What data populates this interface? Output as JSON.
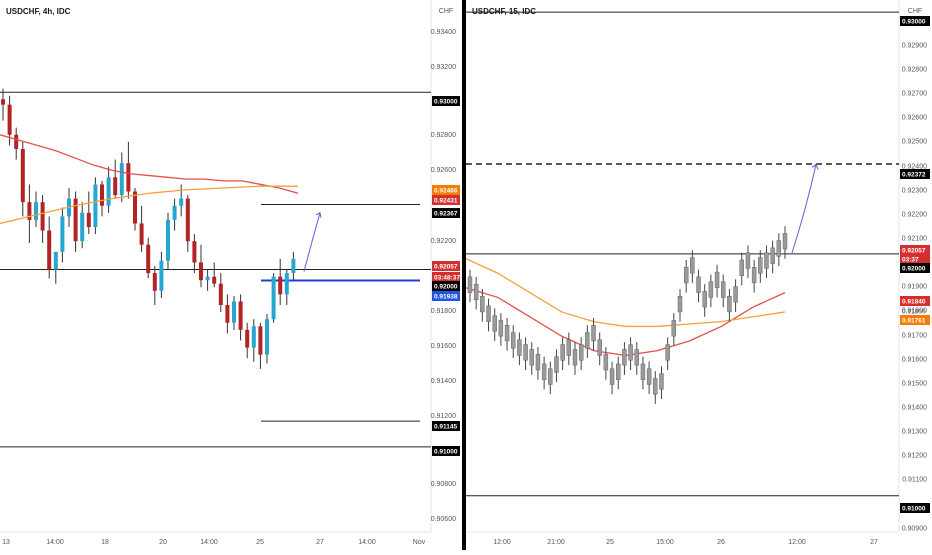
{
  "colors": {
    "up": "#26a7d1",
    "down": "#b32326",
    "neutral_candle": "#9a9a9a",
    "ma_red": "#e0524d",
    "ma_orange": "#f2a23a",
    "arrow": "#5560d6",
    "support_line": "#1f3fd1",
    "level_line": "#222222",
    "divider": "#000000",
    "price_tag_dark": "#000000",
    "price_tag_red": "#d32f2f",
    "price_tag_orange": "#f57c00",
    "price_tag_blue": "#2255dd"
  },
  "left_panel": {
    "title": "USDCHF, 4h, IDC",
    "currency": "CHF",
    "price_ticks": [
      "0.93400",
      "0.93200",
      "0.92800",
      "0.92600",
      "0.92200",
      "0.91800",
      "0.91600",
      "0.91400",
      "0.91200",
      "0.90800",
      "0.90600"
    ],
    "price_tags": [
      {
        "label": "0.93000",
        "style": "dark"
      },
      {
        "label": "0.92466",
        "style": "orange"
      },
      {
        "label": "0.92431",
        "style": "red"
      },
      {
        "label": "0.92367",
        "style": "dark"
      },
      {
        "label": "0.92057",
        "style": "red"
      },
      {
        "label": "03:48:37",
        "style": "red"
      },
      {
        "label": "0.92000",
        "style": "dark"
      },
      {
        "label": "0.91938",
        "style": "blue"
      },
      {
        "label": "0.91145",
        "style": "dark"
      },
      {
        "label": "0.91000",
        "style": "dark"
      }
    ],
    "time_ticks": [
      "13",
      "14:00",
      "18",
      "20",
      "14:00",
      "25",
      "27",
      "14:00",
      "Nov"
    ]
  },
  "right_panel": {
    "title": "USDCHF, 15, IDC",
    "currency": "CHF",
    "price_ticks": [
      "0.92900",
      "0.92800",
      "0.92700",
      "0.92600",
      "0.92500",
      "0.92400",
      "0.92300",
      "0.92200",
      "0.92100",
      "0.91900",
      "0.91800",
      "0.91700",
      "0.91600",
      "0.91500",
      "0.91400",
      "0.91300",
      "0.91200",
      "0.91100",
      "0.90900"
    ],
    "price_tags": [
      {
        "label": "0.93000",
        "style": "dark"
      },
      {
        "label": "0.92372",
        "style": "dark"
      },
      {
        "label": "0.92057",
        "style": "red"
      },
      {
        "label": "03:37",
        "style": "red"
      },
      {
        "label": "0.92000",
        "style": "dark"
      },
      {
        "label": "0.91840",
        "style": "red"
      },
      {
        "label": "0.91800",
        "style": "plain"
      },
      {
        "label": "0.91761",
        "style": "orange"
      },
      {
        "label": "0.91000",
        "style": "dark"
      }
    ],
    "time_ticks": [
      "12:00",
      "21:00",
      "25",
      "15:00",
      "26",
      "12:00",
      "27"
    ]
  },
  "chart_data": [
    {
      "type": "candlestick",
      "title": "USDCHF, 4h, IDC",
      "ylim": [
        0.9052,
        0.9352
      ],
      "series": [
        {
          "kind": "ohlc",
          "values": [
            [
              0.9296,
              0.9302,
              0.9284,
              0.9293
            ],
            [
              0.9293,
              0.9298,
              0.927,
              0.9276
            ],
            [
              0.9276,
              0.928,
              0.9262,
              0.9268
            ],
            [
              0.9268,
              0.9272,
              0.923,
              0.9238
            ],
            [
              0.9238,
              0.9248,
              0.9215,
              0.9228
            ],
            [
              0.9228,
              0.9244,
              0.9224,
              0.9238
            ],
            [
              0.9238,
              0.9242,
              0.9215,
              0.9222
            ],
            [
              0.9222,
              0.923,
              0.9195,
              0.92
            ],
            [
              0.92,
              0.9205,
              0.9192,
              0.921
            ],
            [
              0.921,
              0.9235,
              0.9204,
              0.923
            ],
            [
              0.923,
              0.9246,
              0.9224,
              0.924
            ],
            [
              0.924,
              0.9244,
              0.921,
              0.9216
            ],
            [
              0.9216,
              0.9238,
              0.9212,
              0.9232
            ],
            [
              0.9232,
              0.9244,
              0.922,
              0.9224
            ],
            [
              0.9224,
              0.9252,
              0.922,
              0.9248
            ],
            [
              0.9248,
              0.925,
              0.923,
              0.9236
            ],
            [
              0.9236,
              0.9258,
              0.9232,
              0.9252
            ],
            [
              0.9252,
              0.9262,
              0.924,
              0.9242
            ],
            [
              0.9242,
              0.9266,
              0.9238,
              0.926
            ],
            [
              0.926,
              0.9272,
              0.924,
              0.9244
            ],
            [
              0.9244,
              0.9246,
              0.9222,
              0.9226
            ],
            [
              0.9226,
              0.9236,
              0.921,
              0.9214
            ],
            [
              0.9214,
              0.9218,
              0.9195,
              0.9198
            ],
            [
              0.9198,
              0.9202,
              0.918,
              0.9188
            ],
            [
              0.9188,
              0.921,
              0.9184,
              0.9205
            ],
            [
              0.9205,
              0.9232,
              0.92,
              0.9228
            ],
            [
              0.9228,
              0.924,
              0.9222,
              0.9236
            ],
            [
              0.9236,
              0.9248,
              0.923,
              0.924
            ],
            [
              0.924,
              0.9242,
              0.921,
              0.9216
            ],
            [
              0.9216,
              0.922,
              0.9198,
              0.9204
            ],
            [
              0.9204,
              0.9214,
              0.919,
              0.9194
            ],
            [
              0.9194,
              0.92,
              0.9188,
              0.9196
            ],
            [
              0.9196,
              0.9204,
              0.919,
              0.9192
            ],
            [
              0.9192,
              0.9198,
              0.9176,
              0.918
            ],
            [
              0.918,
              0.9186,
              0.9164,
              0.917
            ],
            [
              0.917,
              0.9185,
              0.9166,
              0.9182
            ],
            [
              0.9182,
              0.9186,
              0.916,
              0.9166
            ],
            [
              0.9166,
              0.917,
              0.915,
              0.9156
            ],
            [
              0.9156,
              0.9172,
              0.9148,
              0.9168
            ],
            [
              0.9168,
              0.917,
              0.9144,
              0.9152
            ],
            [
              0.9152,
              0.9175,
              0.9147,
              0.9172
            ],
            [
              0.9172,
              0.9198,
              0.917,
              0.9196
            ],
            [
              0.9196,
              0.9206,
              0.918,
              0.9186
            ],
            [
              0.9186,
              0.92,
              0.918,
              0.9198
            ],
            [
              0.9198,
              0.921,
              0.9194,
              0.9206
            ]
          ]
        },
        {
          "name": "",
          "kind": "ma",
          "color": "red",
          "values": [
            0.9276,
            0.9273,
            0.927,
            0.9267,
            0.9263,
            0.9259,
            0.9256,
            0.9254,
            0.9253,
            0.9252,
            0.9251,
            0.9251,
            0.925,
            0.925,
            0.9248,
            0.9246,
            0.9243
          ]
        },
        {
          "name": "",
          "kind": "ma",
          "color": "orange",
          "values": [
            0.9226,
            0.9231,
            0.9236,
            0.924,
            0.9243,
            0.9245,
            0.9246,
            0.9247,
            0.9247
          ]
        }
      ],
      "levels": [
        0.93,
        0.92367,
        0.92,
        0.91938,
        0.91145,
        0.91
      ],
      "projection": {
        "from": 0.92,
        "to": 0.9232
      }
    },
    {
      "type": "candlestick",
      "title": "USDCHF, 15, IDC",
      "ylim": [
        0.9085,
        0.9305
      ],
      "series": [
        {
          "kind": "ohlc_trend",
          "values": [
            0.9188,
            0.9185,
            0.918,
            0.9176,
            0.9172,
            0.917,
            0.9168,
            0.9165,
            0.9162,
            0.916,
            0.9158,
            0.9156,
            0.9152,
            0.915,
            0.9155,
            0.916,
            0.9162,
            0.9158,
            0.916,
            0.9165,
            0.9168,
            0.9162,
            0.9156,
            0.915,
            0.9152,
            0.9158,
            0.916,
            0.9158,
            0.9152,
            0.915,
            0.9146,
            0.9148,
            0.916,
            0.917,
            0.918,
            0.9192,
            0.9196,
            0.9188,
            0.9182,
            0.9186,
            0.919,
            0.9186,
            0.918,
            0.9184,
            0.9195,
            0.9198,
            0.9192,
            0.9196,
            0.9198,
            0.92,
            0.9203,
            0.9206
          ]
        },
        {
          "name": "",
          "kind": "ma",
          "color": "red",
          "values": [
            0.9186,
            0.9182,
            0.9174,
            0.9166,
            0.916,
            0.9158,
            0.916,
            0.9164,
            0.917,
            0.9178,
            0.9184
          ]
        },
        {
          "name": "",
          "kind": "ma",
          "color": "orange",
          "values": [
            0.9198,
            0.9192,
            0.9184,
            0.9176,
            0.9172,
            0.917,
            0.917,
            0.9171,
            0.9172,
            0.9174,
            0.9176
          ]
        }
      ],
      "levels": [
        0.93,
        0.92372,
        0.92,
        0.91
      ],
      "projection": {
        "from": 0.92,
        "to": 0.9237
      }
    }
  ]
}
